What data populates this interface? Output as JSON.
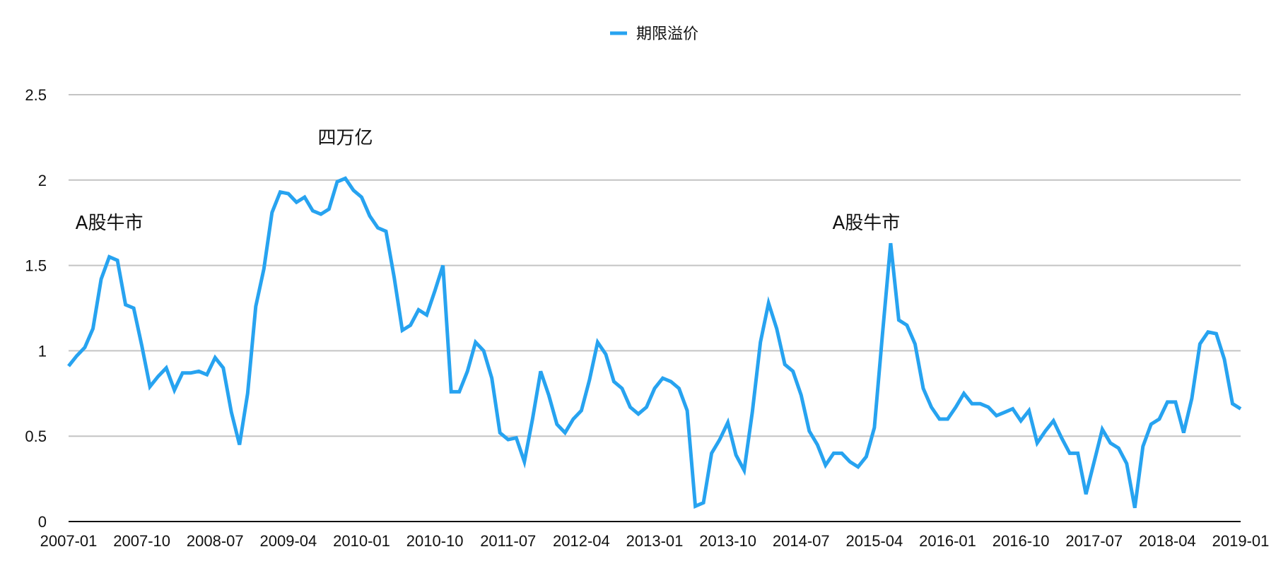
{
  "chart_data": {
    "type": "line",
    "title": "",
    "xlabel": "",
    "ylabel": "",
    "ylim": [
      0,
      2.5
    ],
    "yticks": [
      "0",
      "0.5",
      "1",
      "1.5",
      "2",
      "2.5"
    ],
    "ytick_values": [
      0,
      0.5,
      1,
      1.5,
      2,
      2.5
    ],
    "grid": true,
    "legend_position": "top-center",
    "x_start": "2007-01",
    "x_end": "2019-01",
    "xtick_labels": [
      "2007-01",
      "2007-10",
      "2008-07",
      "2009-04",
      "2010-01",
      "2010-10",
      "2011-07",
      "2012-04",
      "2013-01",
      "2013-10",
      "2014-07",
      "2015-04",
      "2016-01",
      "2016-10",
      "2017-07",
      "2018-04",
      "2019-01"
    ],
    "series": [
      {
        "name": "期限溢价",
        "color": "#27a3f0",
        "values": [
          0.91,
          0.97,
          1.02,
          1.13,
          1.42,
          1.55,
          1.53,
          1.27,
          1.25,
          1.03,
          0.79,
          0.85,
          0.9,
          0.77,
          0.87,
          0.87,
          0.88,
          0.86,
          0.96,
          0.9,
          0.64,
          0.45,
          0.75,
          1.26,
          1.48,
          1.81,
          1.93,
          1.92,
          1.87,
          1.9,
          1.82,
          1.8,
          1.83,
          1.99,
          2.01,
          1.94,
          1.9,
          1.79,
          1.72,
          1.7,
          1.43,
          1.12,
          1.15,
          1.24,
          1.21,
          1.35,
          1.5,
          0.76,
          0.76,
          0.88,
          1.05,
          1.0,
          0.84,
          0.52,
          0.48,
          0.49,
          0.35,
          0.6,
          0.88,
          0.74,
          0.57,
          0.52,
          0.6,
          0.65,
          0.83,
          1.05,
          0.98,
          0.82,
          0.78,
          0.67,
          0.63,
          0.67,
          0.78,
          0.84,
          0.82,
          0.78,
          0.65,
          0.09,
          0.11,
          0.4,
          0.48,
          0.58,
          0.39,
          0.3,
          0.64,
          1.05,
          1.28,
          1.13,
          0.92,
          0.88,
          0.74,
          0.53,
          0.45,
          0.33,
          0.4,
          0.4,
          0.35,
          0.32,
          0.38,
          0.55,
          1.1,
          1.63,
          1.18,
          1.15,
          1.04,
          0.78,
          0.67,
          0.6,
          0.6,
          0.67,
          0.75,
          0.69,
          0.69,
          0.67,
          0.62,
          0.64,
          0.66,
          0.59,
          0.65,
          0.46,
          0.53,
          0.59,
          0.49,
          0.4,
          0.4,
          0.16,
          0.35,
          0.54,
          0.46,
          0.43,
          0.34,
          0.08,
          0.44,
          0.57,
          0.6,
          0.7,
          0.7,
          0.52,
          0.72,
          1.04,
          1.11,
          1.1,
          0.95,
          0.69,
          0.66
        ]
      }
    ],
    "annotations": [
      {
        "text": "A股牛市",
        "x": "2007-06",
        "y": 1.75
      },
      {
        "text": "四万亿",
        "x": "2009-11",
        "y": 2.25
      },
      {
        "text": "A股牛市",
        "x": "2015-03",
        "y": 1.75
      }
    ]
  }
}
